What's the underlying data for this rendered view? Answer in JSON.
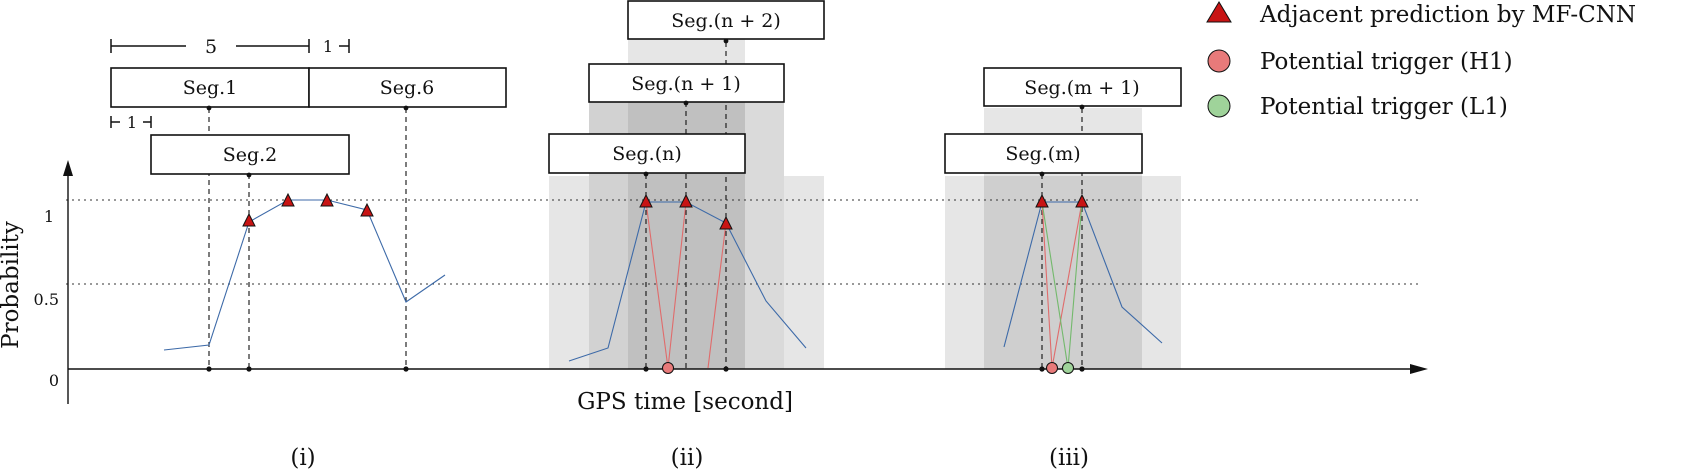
{
  "legend": {
    "adjacent_prediction": "Adjacent prediction by MF-CNN",
    "trigger_h1": "Potential trigger (H1)",
    "trigger_l1": "Potential trigger (L1)"
  },
  "axes": {
    "ylabel": "Probability",
    "xlabel": "GPS time [second]",
    "yticks": [
      "1",
      "0.5",
      "0"
    ]
  },
  "annotations": {
    "span_five": "5",
    "span_one_top": "1",
    "span_one_left": "1"
  },
  "panels": {
    "i": {
      "label": "(i)",
      "seg_1": "Seg.1",
      "seg_6": "Seg.6",
      "seg_2": "Seg.2"
    },
    "ii": {
      "label": "(ii)",
      "seg_n2": "Seg.(n + 2)",
      "seg_n1": "Seg.(n + 1)",
      "seg_n": "Seg.(n)"
    },
    "iii": {
      "label": "(iii)",
      "seg_m1": "Seg.(m + 1)",
      "seg_m": "Seg.(m)"
    }
  },
  "colors": {
    "triangle": "#c81414",
    "h1": "#e87a7a",
    "l1": "#9fd39a",
    "curve": "#3d6aa8"
  }
}
